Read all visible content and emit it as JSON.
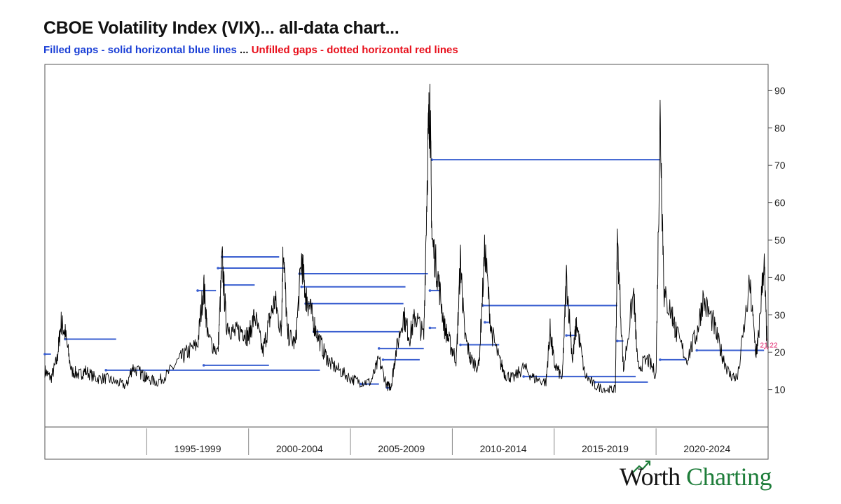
{
  "header": {
    "title": "CBOE Volatility Index (VIX)... all-data chart...",
    "subtitle_filled": "Filled gaps - solid horizontal blue lines",
    "subtitle_sep": "...",
    "subtitle_unfilled": "Unfilled gaps - dotted horizontal red lines"
  },
  "brand": {
    "part1": "Worth",
    "part2": "Charting",
    "color1": "#141414",
    "color2": "#1e7d3a"
  },
  "colors": {
    "price": "#000000",
    "filled_gap": "#3a5fd0",
    "unfilled_gap": "#e0206a",
    "axis": "#555555"
  },
  "chart_data": {
    "type": "line",
    "series": [
      {
        "name": "VIX"
      }
    ],
    "y_ticks": [
      10,
      20,
      30,
      40,
      50,
      60,
      70,
      80,
      90
    ],
    "ylim": [
      0,
      97
    ],
    "xlim": [
      1990.0,
      2025.5
    ],
    "x_period_labels": [
      {
        "label": "1995-1999",
        "from": 1995,
        "to": 2000
      },
      {
        "label": "2000-2004",
        "from": 2000,
        "to": 2005
      },
      {
        "label": "2005-2009",
        "from": 2005,
        "to": 2010
      },
      {
        "label": "2010-2014",
        "from": 2010,
        "to": 2015
      },
      {
        "label": "2015-2019",
        "from": 2015,
        "to": 2020
      },
      {
        "label": "2020-2024",
        "from": 2020,
        "to": 2025
      }
    ],
    "x_ticks": [
      1995,
      2000,
      2005,
      2010,
      2015,
      2020
    ],
    "last_value_label": "21.22",
    "last_value": 21.22,
    "vix_path": [
      [
        1990.0,
        15
      ],
      [
        1990.3,
        13
      ],
      [
        1990.6,
        18
      ],
      [
        1990.8,
        28
      ],
      [
        1991.0,
        25
      ],
      [
        1991.3,
        15
      ],
      [
        1991.7,
        14
      ],
      [
        1992.0,
        15
      ],
      [
        1992.5,
        13
      ],
      [
        1993.0,
        13
      ],
      [
        1993.5,
        12
      ],
      [
        1994.0,
        11
      ],
      [
        1994.3,
        16
      ],
      [
        1994.8,
        14
      ],
      [
        1995.0,
        13
      ],
      [
        1995.5,
        12
      ],
      [
        1996.0,
        14
      ],
      [
        1996.6,
        18
      ],
      [
        1997.0,
        20
      ],
      [
        1997.5,
        22
      ],
      [
        1997.8,
        38
      ],
      [
        1998.0,
        24
      ],
      [
        1998.5,
        20
      ],
      [
        1998.7,
        45
      ],
      [
        1998.9,
        28
      ],
      [
        1999.3,
        25
      ],
      [
        1999.7,
        26
      ],
      [
        2000.0,
        24
      ],
      [
        2000.3,
        30
      ],
      [
        2000.7,
        20
      ],
      [
        2001.0,
        28
      ],
      [
        2001.3,
        34
      ],
      [
        2001.6,
        25
      ],
      [
        2001.7,
        49
      ],
      [
        2001.9,
        25
      ],
      [
        2002.3,
        22
      ],
      [
        2002.6,
        45
      ],
      [
        2002.8,
        35
      ],
      [
        2003.0,
        32
      ],
      [
        2003.3,
        26
      ],
      [
        2003.7,
        20
      ],
      [
        2004.0,
        17
      ],
      [
        2004.5,
        15
      ],
      [
        2005.0,
        13
      ],
      [
        2005.5,
        12
      ],
      [
        2006.0,
        12
      ],
      [
        2006.4,
        18
      ],
      [
        2006.8,
        11
      ],
      [
        2007.0,
        11
      ],
      [
        2007.2,
        19
      ],
      [
        2007.6,
        30
      ],
      [
        2007.9,
        24
      ],
      [
        2008.2,
        30
      ],
      [
        2008.6,
        24
      ],
      [
        2008.8,
        75
      ],
      [
        2008.9,
        88
      ],
      [
        2009.0,
        50
      ],
      [
        2009.3,
        40
      ],
      [
        2009.6,
        27
      ],
      [
        2009.9,
        22
      ],
      [
        2010.2,
        18
      ],
      [
        2010.4,
        45
      ],
      [
        2010.6,
        25
      ],
      [
        2010.9,
        18
      ],
      [
        2011.3,
        16
      ],
      [
        2011.6,
        48
      ],
      [
        2011.9,
        26
      ],
      [
        2012.3,
        18
      ],
      [
        2012.6,
        14
      ],
      [
        2013.0,
        13
      ],
      [
        2013.5,
        16
      ],
      [
        2014.0,
        13
      ],
      [
        2014.6,
        12
      ],
      [
        2014.8,
        26
      ],
      [
        2015.0,
        17
      ],
      [
        2015.4,
        13
      ],
      [
        2015.6,
        40
      ],
      [
        2015.9,
        18
      ],
      [
        2016.1,
        28
      ],
      [
        2016.5,
        14
      ],
      [
        2017.0,
        11
      ],
      [
        2017.6,
        10
      ],
      [
        2018.0,
        10
      ],
      [
        2018.1,
        50
      ],
      [
        2018.4,
        15
      ],
      [
        2018.9,
        36
      ],
      [
        2019.1,
        16
      ],
      [
        2019.6,
        18
      ],
      [
        2020.0,
        14
      ],
      [
        2020.2,
        83
      ],
      [
        2020.4,
        35
      ],
      [
        2020.8,
        30
      ],
      [
        2021.0,
        25
      ],
      [
        2021.5,
        18
      ],
      [
        2022.0,
        25
      ],
      [
        2022.3,
        34
      ],
      [
        2022.8,
        28
      ],
      [
        2023.2,
        20
      ],
      [
        2023.6,
        14
      ],
      [
        2024.0,
        13
      ],
      [
        2024.6,
        38
      ],
      [
        2024.9,
        20
      ],
      [
        2025.0,
        22
      ],
      [
        2025.3,
        45
      ],
      [
        2025.45,
        21.22
      ]
    ],
    "filled_gaps": [
      {
        "y": 19.5,
        "x1": 1990.0,
        "x2": 1990.3
      },
      {
        "y": 23.5,
        "x1": 1991.0,
        "x2": 1993.5
      },
      {
        "y": 15.2,
        "x1": 1993.0,
        "x2": 2003.5
      },
      {
        "y": 16.5,
        "x1": 1997.8,
        "x2": 2001.0
      },
      {
        "y": 45.5,
        "x1": 1998.7,
        "x2": 2001.5
      },
      {
        "y": 42.5,
        "x1": 1998.5,
        "x2": 2001.8
      },
      {
        "y": 38.0,
        "x1": 1998.8,
        "x2": 2000.3
      },
      {
        "y": 36.5,
        "x1": 1997.5,
        "x2": 1998.4
      },
      {
        "y": 41.0,
        "x1": 2002.5,
        "x2": 2008.8
      },
      {
        "y": 37.5,
        "x1": 2002.6,
        "x2": 2007.7
      },
      {
        "y": 33.0,
        "x1": 2002.8,
        "x2": 2007.6
      },
      {
        "y": 25.5,
        "x1": 2003.2,
        "x2": 2007.4
      },
      {
        "y": 21.0,
        "x1": 2006.4,
        "x2": 2008.6
      },
      {
        "y": 18.0,
        "x1": 2006.6,
        "x2": 2008.4
      },
      {
        "y": 71.5,
        "x1": 2009.0,
        "x2": 2020.2
      },
      {
        "y": 36.5,
        "x1": 2008.9,
        "x2": 2009.4
      },
      {
        "y": 26.5,
        "x1": 2008.9,
        "x2": 2009.2
      },
      {
        "y": 32.5,
        "x1": 2011.5,
        "x2": 2018.1
      },
      {
        "y": 28.0,
        "x1": 2011.6,
        "x2": 2011.8
      },
      {
        "y": 22.0,
        "x1": 2010.4,
        "x2": 2012.3
      },
      {
        "y": 24.5,
        "x1": 2015.6,
        "x2": 2016.1
      },
      {
        "y": 23.0,
        "x1": 2018.1,
        "x2": 2018.4
      },
      {
        "y": 18.0,
        "x1": 2020.2,
        "x2": 2021.5
      },
      {
        "y": 20.5,
        "x1": 2022.0,
        "x2": 2025.3
      },
      {
        "y": 13.5,
        "x1": 2013.5,
        "x2": 2019.0
      },
      {
        "y": 12.0,
        "x1": 2017.0,
        "x2": 2019.6
      },
      {
        "y": 11.5,
        "x1": 2005.5,
        "x2": 2006.4
      },
      {
        "y": 10.5,
        "x1": 2006.8,
        "x2": 2007.0
      }
    ],
    "unfilled_gaps": [
      {
        "y": 23.5,
        "x1": 2025.4,
        "x2": 2025.5
      },
      {
        "y": 21.0,
        "x1": 2025.3,
        "x2": 2025.5
      }
    ]
  }
}
